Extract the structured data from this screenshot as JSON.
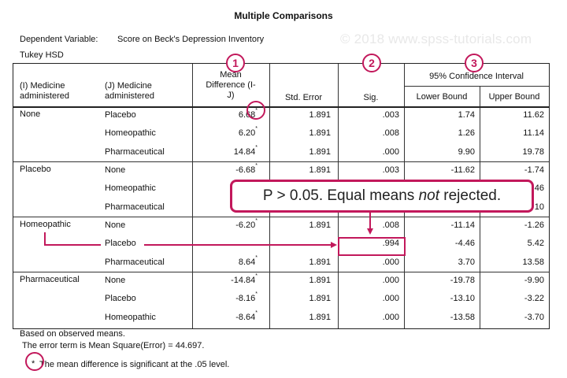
{
  "title": "Multiple Comparisons",
  "dependent_label": "Dependent Variable:",
  "dependent_value": "Score on Beck's Depression Inventory",
  "method": "Tukey HSD",
  "watermark": "© 2018 www.spss-tutorials.com",
  "headers": {
    "i_medicine": [
      "(I) Medicine",
      "administered"
    ],
    "j_medicine": [
      "(J) Medicine",
      "administered"
    ],
    "mean_diff": [
      "Mean",
      "Difference (I-",
      "J)"
    ],
    "std_error": "Std. Error",
    "sig": "Sig.",
    "ci": "95% Confidence Interval",
    "lower": "Lower Bound",
    "upper": "Upper Bound"
  },
  "groups": [
    {
      "i": "None",
      "rows": [
        {
          "j": "Placebo",
          "md": "6.68",
          "star": true,
          "se": "1.891",
          "sig": ".003",
          "lb": "1.74",
          "ub": "11.62"
        },
        {
          "j": "Homeopathic",
          "md": "6.20",
          "star": true,
          "se": "1.891",
          "sig": ".008",
          "lb": "1.26",
          "ub": "11.14"
        },
        {
          "j": "Pharmaceutical",
          "md": "14.84",
          "star": true,
          "se": "1.891",
          "sig": ".000",
          "lb": "9.90",
          "ub": "19.78"
        }
      ]
    },
    {
      "i": "Placebo",
      "rows": [
        {
          "j": "None",
          "md": "-6.68",
          "star": true,
          "se": "1.891",
          "sig": ".003",
          "lb": "-11.62",
          "ub": "-1.74"
        },
        {
          "j": "Homeopathic",
          "md": "",
          "star": false,
          "se": "",
          "sig": "",
          "lb": "",
          "ub": "46"
        },
        {
          "j": "Pharmaceutical",
          "md": "",
          "star": false,
          "se": "",
          "sig": "",
          "lb": "",
          "ub": "10"
        }
      ]
    },
    {
      "i": "Homeopathic",
      "rows": [
        {
          "j": "None",
          "md": "-6.20",
          "star": true,
          "se": "1.891",
          "sig": ".008",
          "lb": "-11.14",
          "ub": "-1.26"
        },
        {
          "j": "Placebo",
          "md": "",
          "star": false,
          "se": "",
          "sig": ".994",
          "lb": "-4.46",
          "ub": "5.42"
        },
        {
          "j": "Pharmaceutical",
          "md": "8.64",
          "star": true,
          "se": "1.891",
          "sig": ".000",
          "lb": "3.70",
          "ub": "13.58"
        }
      ]
    },
    {
      "i": "Pharmaceutical",
      "rows": [
        {
          "j": "None",
          "md": "-14.84",
          "star": true,
          "se": "1.891",
          "sig": ".000",
          "lb": "-19.78",
          "ub": "-9.90"
        },
        {
          "j": "Placebo",
          "md": "-8.16",
          "star": true,
          "se": "1.891",
          "sig": ".000",
          "lb": "-13.10",
          "ub": "-3.22"
        },
        {
          "j": "Homeopathic",
          "md": "-8.64",
          "star": true,
          "se": "1.891",
          "sig": ".000",
          "lb": "-13.58",
          "ub": "-3.70"
        }
      ]
    }
  ],
  "footer": {
    "line1": "Based on observed means.",
    "line2": "The error term is Mean Square(Error) = 44.697.",
    "star_symbol": "*",
    "line3": "The mean difference is significant at the .05 level."
  },
  "annotations": {
    "badge1": "1",
    "badge2": "2",
    "badge3": "3",
    "callout_prefix": "P > 0.05. Equal means ",
    "callout_emph": "not",
    "callout_suffix": " rejected.",
    "accent_color": "#c2185b"
  }
}
